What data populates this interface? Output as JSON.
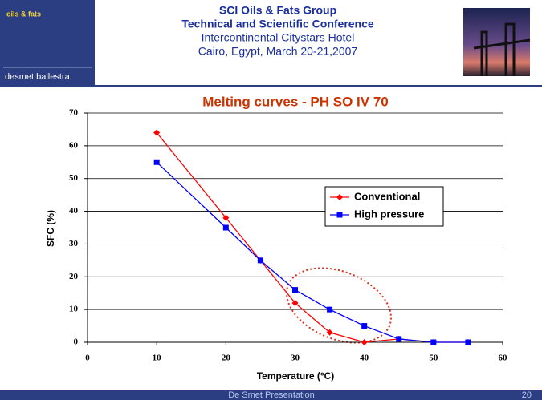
{
  "header": {
    "logo_top": "oils & fats",
    "logo_bottom": "desmet ballestra",
    "lines": [
      "SCI Oils & Fats Group",
      "Technical and Scientific Conference",
      "Intercontinental Citystars Hotel",
      "Cairo, Egypt, March 20-21,2007"
    ]
  },
  "footer": {
    "text": "De Smet Presentation",
    "page": "20"
  },
  "chart_data": {
    "type": "line",
    "title": "Melting curves - PH SO IV 70",
    "x_label": "Temperature (°C)",
    "y_label": "SFC (%)",
    "x": [
      10,
      20,
      25,
      30,
      35,
      40,
      45,
      50,
      55
    ],
    "series": [
      {
        "name": "Conventional",
        "color": "#ff0000",
        "marker": "diamond",
        "values": [
          64,
          38,
          25,
          12,
          3,
          0,
          1,
          0,
          0
        ]
      },
      {
        "name": "High pressure",
        "color": "#0000ff",
        "marker": "square",
        "values": [
          55,
          35,
          25,
          16,
          10,
          5,
          1,
          0,
          0
        ]
      }
    ],
    "xlim": [
      0,
      60
    ],
    "xticks": [
      0,
      10,
      20,
      30,
      40,
      50,
      60
    ],
    "ylim": [
      0,
      70
    ],
    "yticks": [
      0,
      10,
      20,
      30,
      40,
      50,
      60,
      70
    ],
    "grid": true,
    "legend": "right"
  }
}
